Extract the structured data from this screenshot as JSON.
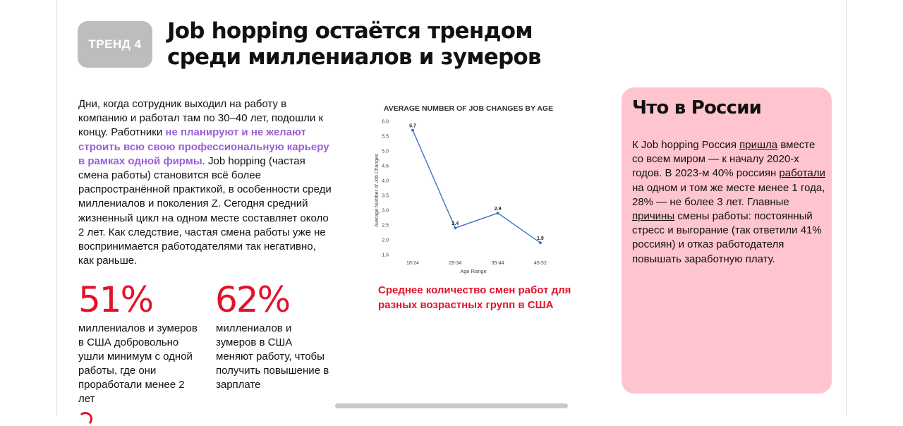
{
  "trend": {
    "badge": "ТРЕНД 4",
    "title": "Job hopping остаётся трендом среди миллениалов и зумеров"
  },
  "lead": {
    "part1": "Дни, когда сотрудник выходил на работу в компанию и работал там по 30–40 лет, подошли к концу. Работники ",
    "highlight": "не планируют и не желают строить всю свою профессиональную карьеру в рамках одной фирмы",
    "part2": ". Job hopping (частая смена работы) становится всё более распространённой практикой, в особенности среди миллениалов и поколения Z. Сегодня средний жизненный цикл на одном месте составляет около 2 лет. Как следствие, частая смена работы уже не воспринимается работодателями так негативно, как раньше."
  },
  "stats": [
    {
      "value": "51%",
      "text": "миллениалов и зумеров в США добровольно ушли минимум с одной работы, где они проработали менее 2 лет"
    },
    {
      "value": "62%",
      "text": "миллениалов и зумеров в США меняют работу, чтобы получить повышение в зарплате"
    }
  ],
  "chart_caption": "Среднее количество смен работ для разных возрастных групп в США",
  "chart_data": {
    "type": "line",
    "title": "AVERAGE NUMBER OF JOB CHANGES BY AGE",
    "xlabel": "Age Range",
    "ylabel": "Average Number of Job Changes",
    "categories": [
      "18-24",
      "25-34",
      "35-44",
      "45-52"
    ],
    "values": [
      5.7,
      2.4,
      2.9,
      1.9
    ],
    "data_labels": [
      "5.7",
      "2.4",
      "2.9",
      "1.9"
    ],
    "ylim": [
      1.5,
      6.0
    ],
    "yticks": [
      1.5,
      2.0,
      2.5,
      3.0,
      3.5,
      4.0,
      4.5,
      5.0,
      5.5,
      6.0
    ],
    "ytick_labels": [
      "1.5",
      "2.0",
      "2.5",
      "3.0",
      "3.5",
      "4.0",
      "4.5",
      "5.0",
      "5.5",
      "6.0"
    ],
    "grid": false,
    "line_color": "#3b73c9"
  },
  "russia": {
    "title": "Что в России",
    "t1": "К Job hopping Россия ",
    "link1": "пришла",
    "t2": " вместе со всем миром — к началу 2020-х годов. В 2023-м 40% россиян ",
    "link2": "работали",
    "t3": " на одном и том же месте менее 1 года, 28% — не более 3 лет. Главные ",
    "link3": "причины",
    "t4": " смены работы: постоянный стресс и выгорание (так ответили 41% россиян) и отказ работодателя повышать заработную плату."
  }
}
